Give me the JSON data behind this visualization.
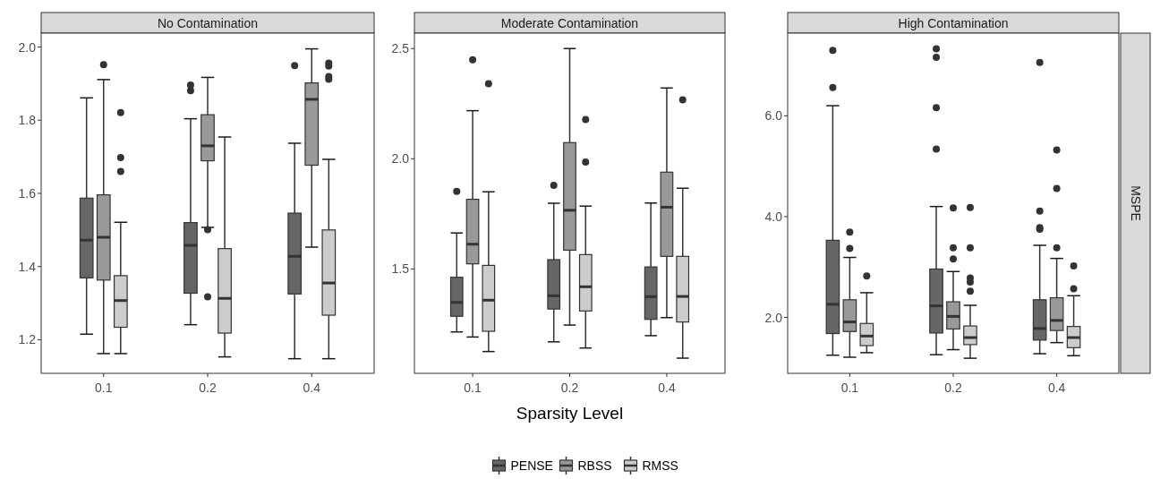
{
  "chart_data": [
    {
      "type": "box",
      "title": "No Contamination",
      "categories": [
        "0.1",
        "0.2",
        "0.4"
      ],
      "ylim": [
        1.108,
        2.038
      ],
      "yticks": [
        1.2,
        1.4,
        1.6,
        1.8,
        {
          "value": 2.0,
          "label": "2.0"
        }
      ],
      "grid": false,
      "series": [
        {
          "color": "#666666",
          "boxes": [
            {
              "low": 1.215,
              "q1": 1.369,
              "median": 1.472,
              "q3": 1.587,
              "high": 1.861
            },
            {
              "low": 1.241,
              "q1": 1.327,
              "median": 1.458,
              "q3": 1.52,
              "high": 1.804,
              "outliers": [
                1.896,
                1.881
              ]
            },
            {
              "low": 1.148,
              "q1": 1.325,
              "median": 1.428,
              "q3": 1.546,
              "high": 1.737,
              "outliers": [
                1.949
              ]
            }
          ]
        },
        {
          "color": "#999999",
          "boxes": [
            {
              "low": 1.162,
              "q1": 1.363,
              "median": 1.48,
              "q3": 1.596,
              "high": 1.911,
              "outliers": [
                1.952
              ]
            },
            {
              "low": 1.507,
              "q1": 1.689,
              "median": 1.73,
              "q3": 1.815,
              "high": 1.917,
              "outliers": [
                1.501,
                1.317
              ]
            },
            {
              "low": 1.453,
              "q1": 1.677,
              "median": 1.857,
              "q3": 1.902,
              "high": 1.995
            }
          ]
        },
        {
          "color": "#cccccc",
          "boxes": [
            {
              "low": 1.162,
              "q1": 1.234,
              "median": 1.307,
              "q3": 1.375,
              "high": 1.521,
              "outliers": [
                1.821,
                1.698,
                1.66
              ]
            },
            {
              "low": 1.153,
              "q1": 1.218,
              "median": 1.313,
              "q3": 1.449,
              "high": 1.754
            },
            {
              "low": 1.148,
              "q1": 1.267,
              "median": 1.355,
              "q3": 1.5,
              "high": 1.693,
              "outliers": [
                1.956,
                1.948,
                1.919,
                1.912
              ]
            }
          ]
        }
      ]
    },
    {
      "type": "box",
      "title": "Moderate Contamination",
      "xlabel": "Sparsity Level",
      "legend": "bottom",
      "categories": [
        "0.1",
        "0.2",
        "0.4"
      ],
      "ylim": [
        1.026,
        2.57
      ],
      "yticks": [
        1.5,
        {
          "value": 2.0,
          "label": "2.0"
        },
        2.5
      ],
      "grid": false,
      "series": [
        {
          "name": "PENSE",
          "color": "#666666",
          "boxes": [
            {
              "low": 1.214,
              "q1": 1.285,
              "median": 1.348,
              "q3": 1.462,
              "high": 1.663,
              "outliers": [
                1.852
              ]
            },
            {
              "low": 1.169,
              "q1": 1.318,
              "median": 1.378,
              "q3": 1.542,
              "high": 1.798,
              "outliers": [
                1.879
              ]
            },
            {
              "low": 1.197,
              "q1": 1.271,
              "median": 1.374,
              "q3": 1.509,
              "high": 1.799
            }
          ]
        },
        {
          "name": "RBSS",
          "color": "#999999",
          "boxes": [
            {
              "low": 1.191,
              "q1": 1.523,
              "median": 1.612,
              "q3": 1.816,
              "high": 2.218,
              "outliers": [
                2.449
              ]
            },
            {
              "low": 1.245,
              "q1": 1.585,
              "median": 1.766,
              "q3": 2.073,
              "high": 2.5
            },
            {
              "low": 1.279,
              "q1": 1.557,
              "median": 1.78,
              "q3": 1.939,
              "high": 2.321
            }
          ]
        },
        {
          "name": "RMSS",
          "color": "#cccccc",
          "boxes": [
            {
              "low": 1.125,
              "q1": 1.217,
              "median": 1.358,
              "q3": 1.516,
              "high": 1.85,
              "outliers": [
                2.34
              ]
            },
            {
              "low": 1.141,
              "q1": 1.309,
              "median": 1.419,
              "q3": 1.565,
              "high": 1.785,
              "outliers": [
                2.178,
                1.985
              ]
            },
            {
              "low": 1.095,
              "q1": 1.259,
              "median": 1.375,
              "q3": 1.557,
              "high": 1.866,
              "outliers": [
                2.267
              ]
            }
          ]
        }
      ]
    },
    {
      "type": "box",
      "title": "High Contamination",
      "ylabel": "MSPE",
      "categories": [
        "0.1",
        "0.2",
        "0.4"
      ],
      "ylim": [
        0.89,
        7.64
      ],
      "yticks": [
        {
          "value": 2,
          "label": "2.0"
        },
        {
          "value": 4,
          "label": "4.0"
        },
        {
          "value": 6,
          "label": "6.0"
        }
      ],
      "grid": false,
      "series": [
        {
          "color": "#666666",
          "boxes": [
            {
              "low": 1.25,
              "q1": 1.68,
              "median": 2.26,
              "q3": 3.53,
              "high": 6.2,
              "outliers": [
                7.3,
                6.56
              ]
            },
            {
              "low": 1.26,
              "q1": 1.69,
              "median": 2.23,
              "q3": 2.96,
              "high": 4.2,
              "outliers": [
                7.33,
                7.16,
                6.16,
                5.34
              ]
            },
            {
              "low": 1.28,
              "q1": 1.55,
              "median": 1.78,
              "q3": 2.35,
              "high": 3.43,
              "outliers": [
                7.06,
                4.11,
                3.78,
                3.75
              ]
            }
          ]
        },
        {
          "color": "#999999",
          "boxes": [
            {
              "low": 1.21,
              "q1": 1.72,
              "median": 1.91,
              "q3": 2.35,
              "high": 3.19,
              "outliers": [
                3.69,
                3.37
              ]
            },
            {
              "low": 1.36,
              "q1": 1.77,
              "median": 2.02,
              "q3": 2.31,
              "high": 2.91,
              "outliers": [
                4.17,
                3.38,
                3.16
              ]
            },
            {
              "low": 1.5,
              "q1": 1.74,
              "median": 1.94,
              "q3": 2.39,
              "high": 3.17,
              "outliers": [
                5.32,
                4.56,
                3.38
              ]
            }
          ]
        },
        {
          "color": "#cccccc",
          "boxes": [
            {
              "low": 1.3,
              "q1": 1.44,
              "median": 1.63,
              "q3": 1.88,
              "high": 2.49,
              "outliers": [
                2.82
              ]
            },
            {
              "low": 1.19,
              "q1": 1.46,
              "median": 1.6,
              "q3": 1.83,
              "high": 2.24,
              "outliers": [
                4.18,
                3.38,
                2.78,
                2.7,
                2.52
              ]
            },
            {
              "low": 1.24,
              "q1": 1.4,
              "median": 1.6,
              "q3": 1.82,
              "high": 2.43,
              "outliers": [
                3.02,
                2.57
              ]
            }
          ]
        }
      ]
    }
  ]
}
